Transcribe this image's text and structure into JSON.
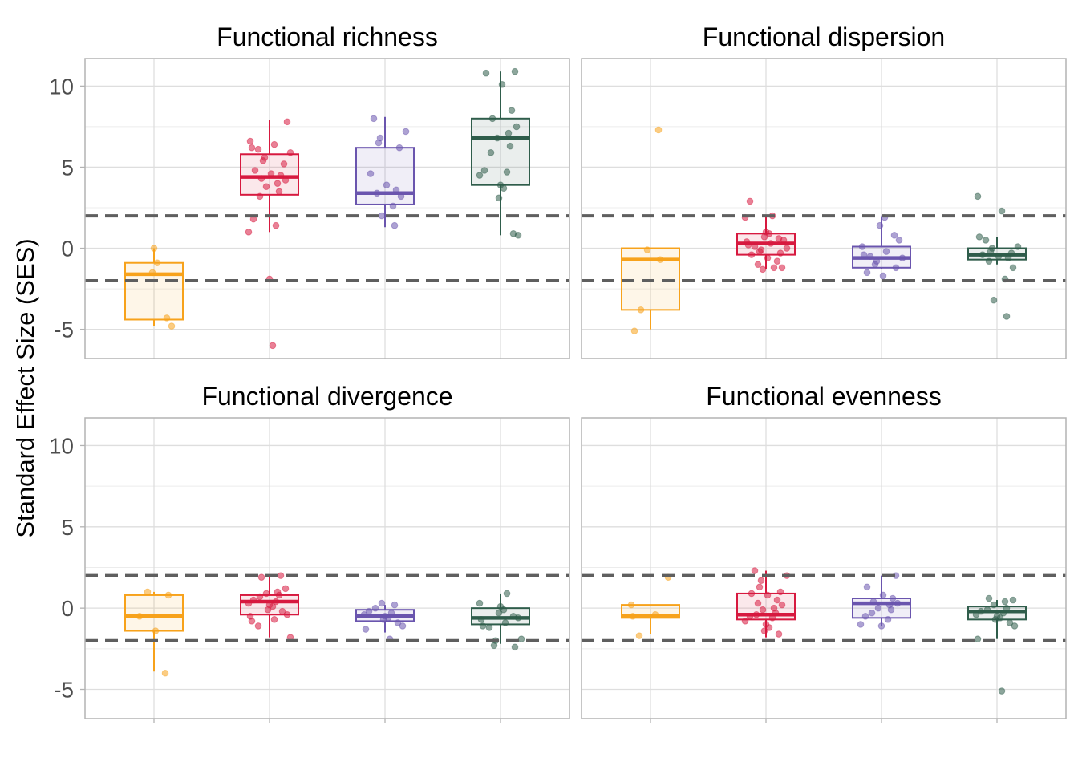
{
  "chart_data": {
    "type": "box",
    "ylabel": "Standard Effect Size (SES)",
    "ylim": [
      -6.8,
      11.7
    ],
    "y_ticks": [
      -5,
      0,
      5,
      10
    ],
    "y_tick_labels": [
      "-5",
      "0",
      "5",
      "10"
    ],
    "reference_lines": [
      2,
      -2
    ],
    "grid": true,
    "legend": "none",
    "group_colors": [
      "#F7A21B",
      "#D7193F",
      "#6A55AE",
      "#2F5D4B"
    ],
    "panels": [
      {
        "title": "Functional richness",
        "boxes": [
          {
            "min": -4.8,
            "q1": -4.4,
            "median": -1.6,
            "q3": -0.9,
            "max": 0.0
          },
          {
            "min": 1.0,
            "q1": 3.3,
            "median": 4.4,
            "q3": 5.8,
            "max": 7.9
          },
          {
            "min": 1.3,
            "q1": 2.7,
            "median": 3.4,
            "q3": 6.2,
            "max": 8.1
          },
          {
            "min": 0.8,
            "q1": 3.9,
            "median": 6.8,
            "q3": 8.0,
            "max": 10.9
          }
        ],
        "points": [
          [
            0.0,
            -0.9,
            -1.5,
            -4.3,
            -4.8
          ],
          [
            7.8,
            6.6,
            6.4,
            6.2,
            6.1,
            5.9,
            5.6,
            5.4,
            5.2,
            4.8,
            4.6,
            4.5,
            4.3,
            4.2,
            4.0,
            3.8,
            3.5,
            3.2,
            1.8,
            1.4,
            1.0,
            -1.9,
            -6.0
          ],
          [
            8.0,
            7.2,
            6.8,
            6.5,
            6.2,
            4.6,
            3.9,
            3.6,
            3.4,
            3.2,
            2.6,
            2.0,
            1.4
          ],
          [
            10.9,
            10.8,
            10.1,
            8.5,
            8.0,
            7.5,
            7.1,
            6.8,
            6.3,
            5.9,
            4.8,
            4.7,
            4.5,
            3.9,
            3.7,
            3.1,
            0.9,
            0.8
          ]
        ]
      },
      {
        "title": "Functional dispersion",
        "boxes": [
          {
            "min": -5.0,
            "q1": -3.8,
            "median": -0.7,
            "q3": 0.0,
            "max": 0.0
          },
          {
            "min": -1.3,
            "q1": -0.4,
            "median": 0.3,
            "q3": 0.9,
            "max": 2.0
          },
          {
            "min": -1.3,
            "q1": -1.2,
            "median": -0.6,
            "q3": 0.1,
            "max": 1.9
          },
          {
            "min": -1.0,
            "q1": -0.7,
            "median": -0.4,
            "q3": 0.0,
            "max": 0.7
          }
        ],
        "points": [
          [
            7.3,
            -0.1,
            -0.7,
            -3.8,
            -5.1
          ],
          [
            2.9,
            2.0,
            1.9,
            1.0,
            0.9,
            0.7,
            0.6,
            0.5,
            0.4,
            0.3,
            0.2,
            0.1,
            0.0,
            -0.1,
            -0.2,
            -0.3,
            -0.4,
            -0.6,
            -0.8,
            -1.0,
            -1.2,
            -1.2,
            -1.3
          ],
          [
            1.9,
            1.4,
            0.8,
            0.5,
            0.1,
            -0.2,
            -0.4,
            -0.5,
            -0.6,
            -0.8,
            -1.0,
            -1.2,
            -1.5,
            -1.7
          ],
          [
            3.2,
            2.3,
            0.7,
            0.5,
            0.1,
            0.0,
            -0.2,
            -0.3,
            -0.4,
            -0.5,
            -0.6,
            -0.8,
            -1.2,
            -1.9,
            -3.2,
            -4.2
          ]
        ]
      },
      {
        "title": "Functional divergence",
        "boxes": [
          {
            "min": -3.9,
            "q1": -1.4,
            "median": -0.5,
            "q3": 0.8,
            "max": 1.0
          },
          {
            "min": -1.8,
            "q1": -0.4,
            "median": 0.4,
            "q3": 0.8,
            "max": 2.0
          },
          {
            "min": -1.5,
            "q1": -0.8,
            "median": -0.5,
            "q3": -0.1,
            "max": 0.2
          },
          {
            "min": -2.2,
            "q1": -1.0,
            "median": -0.6,
            "q3": 0.0,
            "max": 0.9
          }
        ],
        "points": [
          [
            1.0,
            0.8,
            -0.5,
            -1.4,
            -4.0
          ],
          [
            2.0,
            1.9,
            1.2,
            1.0,
            0.9,
            0.8,
            0.7,
            0.5,
            0.4,
            0.3,
            0.2,
            0.1,
            -0.1,
            -0.2,
            -0.4,
            -0.5,
            -0.7,
            -0.8,
            -1.1,
            -1.8
          ],
          [
            0.3,
            0.2,
            0.0,
            -0.2,
            -0.3,
            -0.4,
            -0.5,
            -0.6,
            -0.7,
            -0.9,
            -1.1,
            -1.3,
            -1.9
          ],
          [
            0.9,
            0.3,
            0.1,
            -0.1,
            -0.3,
            -0.5,
            -0.6,
            -0.7,
            -0.9,
            -1.1,
            -1.2,
            -1.9,
            -2.0,
            -2.3,
            -2.4
          ]
        ]
      },
      {
        "title": "Functional evenness",
        "boxes": [
          {
            "min": -1.6,
            "q1": -0.6,
            "median": -0.5,
            "q3": 0.2,
            "max": 0.2
          },
          {
            "min": -1.8,
            "q1": -0.7,
            "median": -0.4,
            "q3": 0.9,
            "max": 2.3
          },
          {
            "min": -1.1,
            "q1": -0.6,
            "median": 0.3,
            "q3": 0.6,
            "max": 2.0
          },
          {
            "min": -1.9,
            "q1": -0.7,
            "median": -0.2,
            "q3": 0.1,
            "max": 0.5
          }
        ],
        "points": [
          [
            1.9,
            0.2,
            -0.4,
            -0.5,
            -1.7
          ],
          [
            2.3,
            2.0,
            1.7,
            1.3,
            1.0,
            0.9,
            0.8,
            0.5,
            0.3,
            0.2,
            0.0,
            -0.1,
            -0.3,
            -0.4,
            -0.5,
            -0.6,
            -0.8,
            -1.0,
            -1.2,
            -1.4,
            -1.6
          ],
          [
            2.0,
            1.3,
            0.8,
            0.6,
            0.4,
            0.3,
            0.2,
            0.0,
            -0.1,
            -0.3,
            -0.5,
            -0.7,
            -1.0,
            -1.1
          ],
          [
            0.6,
            0.5,
            0.4,
            0.2,
            0.0,
            -0.1,
            -0.2,
            -0.3,
            -0.4,
            -0.5,
            -0.6,
            -0.7,
            -0.9,
            -1.1,
            -1.9,
            -5.1
          ]
        ]
      }
    ]
  }
}
